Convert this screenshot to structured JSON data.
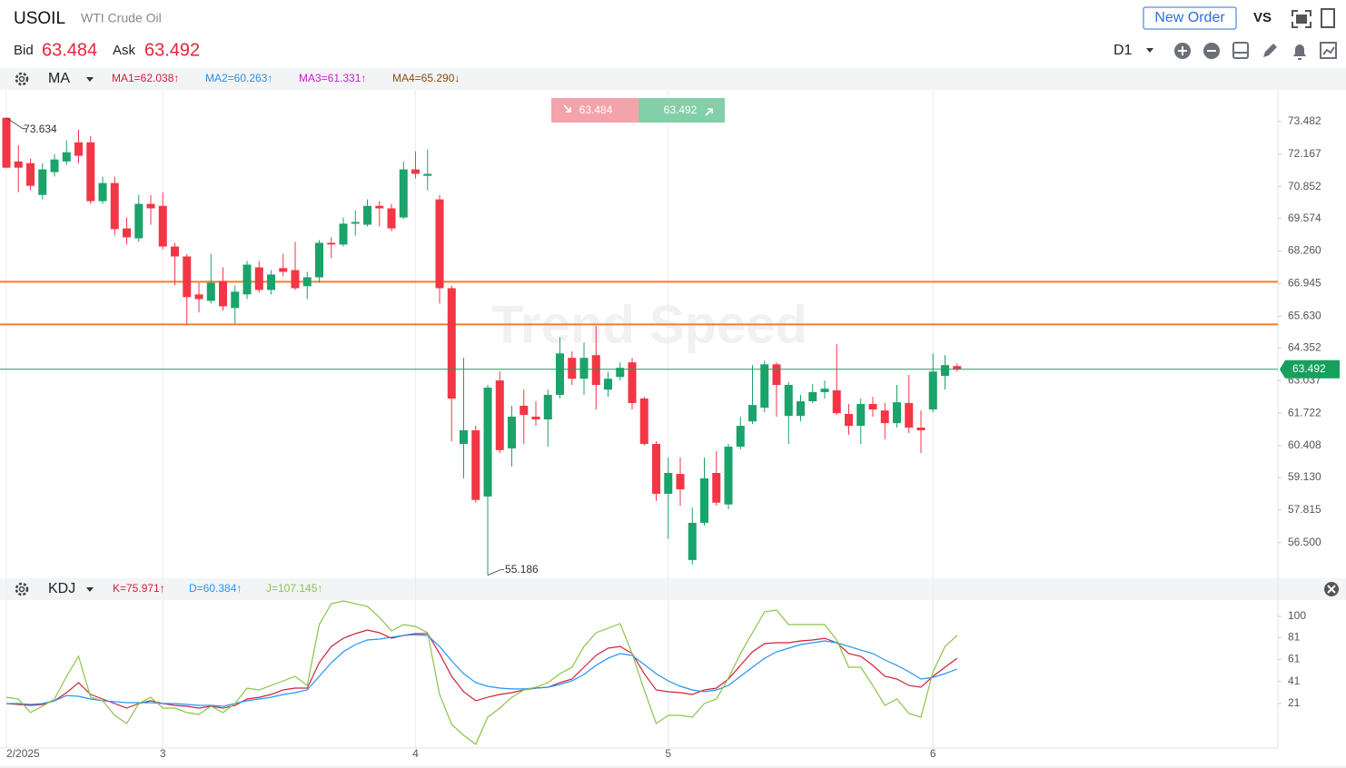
{
  "header": {
    "symbol": "USOIL",
    "name": "WTI Crude Oil",
    "bid_label": "Bid",
    "bid": "63.484",
    "ask_label": "Ask",
    "ask": "63.492",
    "new_order": "New Order",
    "vs": "VS",
    "timeframe": "D1"
  },
  "trade_box": {
    "sell": "63.484",
    "buy": "63.492"
  },
  "watermark": "Trend Speed",
  "chart_data": [
    {
      "type": "candlestick",
      "indicator": "MA",
      "indicator_labels": [
        {
          "text": "MA1=62.038↑",
          "color": "#d01c3c"
        },
        {
          "text": "MA2=60.263↑",
          "color": "#2b8fe0"
        },
        {
          "text": "MA3=61.331↑",
          "color": "#c81fc8"
        },
        {
          "text": "MA4=65.290↓",
          "color": "#8a4b0c"
        }
      ],
      "up_color": "#1aa36a",
      "down_color": "#f23645",
      "open": [
        73.63,
        71.87,
        71.8,
        70.52,
        71.44,
        71.87,
        72.64,
        72.64,
        70.27,
        71.0,
        69.17,
        68.77,
        70.16,
        70.08,
        68.44,
        68.04,
        66.51,
        66.25,
        67.05,
        65.96,
        66.51,
        67.6,
        66.69,
        67.57,
        67.49,
        66.84,
        67.2,
        68.59,
        68.52,
        69.36,
        69.32,
        70.08,
        69.98,
        69.61,
        71.55,
        71.29,
        70.34,
        66.76,
        60.48,
        61.03,
        58.36,
        63.04,
        60.3,
        62.02,
        61.58,
        61.47,
        62.46,
        63.95,
        63.11,
        64.06,
        62.67,
        63.18,
        63.77,
        62.31,
        60.48,
        58.47,
        59.27,
        55.8,
        57.3,
        59.31,
        58.04,
        60.37,
        61.39,
        61.94,
        63.69,
        61.61,
        61.61,
        62.2,
        62.57,
        62.64,
        61.69,
        61.21,
        62.09,
        61.83,
        61.32,
        62.13,
        61.14,
        61.87,
        63.22,
        63.62
      ],
      "high": [
        73.634,
        72.53,
        71.98,
        71.8,
        72.17,
        72.72,
        73.15,
        72.9,
        71.26,
        71.26,
        69.61,
        70.52,
        70.52,
        70.63,
        68.59,
        68.15,
        66.98,
        68.15,
        67.6,
        66.87,
        67.86,
        67.86,
        67.49,
        68.15,
        68.63,
        67.42,
        68.7,
        68.81,
        69.61,
        69.9,
        70.34,
        70.27,
        70.16,
        71.87,
        72.28,
        72.35,
        70.52,
        66.87,
        63.95,
        61.21,
        62.86,
        63.4,
        62.02,
        62.67,
        62.2,
        62.67,
        64.79,
        64.21,
        64.57,
        65.23,
        63.4,
        63.77,
        63.95,
        62.38,
        60.59,
        59.93,
        59.93,
        57.92,
        59.93,
        60.19,
        60.48,
        61.58,
        63.66,
        63.84,
        63.77,
        62.97,
        62.46,
        62.9,
        63.04,
        64.5,
        62.09,
        62.31,
        62.38,
        62.13,
        62.86,
        63.26,
        61.83,
        64.13,
        64.06,
        63.73
      ],
      "low": [
        71.6,
        70.63,
        70.71,
        70.34,
        71.26,
        71.73,
        71.8,
        70.16,
        70.16,
        68.88,
        68.52,
        68.63,
        69.32,
        68.33,
        66.87,
        65.3,
        65.78,
        66.14,
        65.85,
        65.34,
        66.32,
        66.58,
        66.51,
        67.24,
        66.69,
        66.32,
        66.98,
        67.97,
        68.44,
        68.88,
        69.25,
        69.25,
        69.06,
        69.54,
        71.18,
        70.71,
        66.14,
        60.59,
        59.09,
        58.11,
        55.186,
        60.11,
        59.57,
        60.48,
        61.21,
        60.37,
        62.31,
        62.86,
        62.46,
        61.87,
        62.38,
        63.04,
        61.87,
        60.41,
        58.18,
        56.65,
        57.99,
        55.62,
        57.19,
        57.99,
        57.85,
        60.26,
        61.28,
        61.76,
        61.58,
        60.48,
        61.39,
        62.13,
        62.31,
        61.65,
        60.85,
        60.48,
        61.58,
        60.67,
        61.14,
        60.92,
        60.11,
        61.76,
        62.67,
        63.4
      ],
      "close": [
        71.62,
        71.62,
        70.89,
        71.55,
        71.95,
        72.24,
        72.1,
        70.27,
        71.0,
        69.14,
        68.81,
        70.16,
        69.98,
        68.44,
        68.04,
        66.4,
        66.32,
        66.98,
        66.03,
        66.62,
        67.71,
        66.69,
        67.31,
        67.42,
        66.76,
        67.2,
        68.59,
        68.52,
        69.36,
        69.43,
        70.08,
        69.98,
        69.17,
        71.55,
        71.37,
        71.37,
        66.76,
        62.31,
        61.03,
        58.22,
        62.75,
        60.23,
        61.58,
        61.65,
        61.47,
        62.46,
        64.13,
        63.11,
        63.95,
        62.86,
        63.11,
        63.55,
        62.13,
        60.48,
        58.47,
        59.31,
        58.65,
        57.3,
        59.09,
        58.11,
        60.37,
        61.21,
        62.05,
        63.69,
        62.86,
        62.86,
        62.2,
        62.57,
        62.71,
        61.72,
        61.21,
        62.09,
        61.87,
        61.32,
        62.16,
        61.14,
        61.03,
        63.4,
        63.66,
        63.49
      ],
      "last": 63.492,
      "last_color": "#17a05d",
      "levels": [
        67.02,
        65.3
      ],
      "level_color": "#f57c28",
      "ylim": [
        55.1,
        74.72
      ],
      "yticks": [
        73.482,
        72.167,
        70.852,
        69.574,
        {
          "value": 68.26,
          "label": "68.260"
        },
        66.945,
        {
          "value": 65.63,
          "label": "65.630"
        },
        64.352,
        63.037,
        61.722,
        60.408,
        {
          "value": 59.13,
          "label": "59.130"
        },
        57.815,
        {
          "value": 56.5,
          "label": "56.500"
        }
      ],
      "xlim": [
        -0.53,
        105.66
      ],
      "xticks": [
        {
          "value": 0,
          "label": "2/2025"
        },
        {
          "value": 13,
          "label": "3"
        },
        {
          "value": 34,
          "label": "4"
        },
        {
          "value": 55,
          "label": "5"
        },
        {
          "value": 77,
          "label": "6"
        }
      ]
    },
    {
      "type": "line",
      "indicator": "KDJ",
      "series": [
        {
          "name": "K=75.971↑",
          "color": "#d0213d",
          "values": [
            21.0,
            20.2,
            19.3,
            20.2,
            23.5,
            30.9,
            39.9,
            29.2,
            25.1,
            21.0,
            16.9,
            21.0,
            23.5,
            21.0,
            19.3,
            18.5,
            16.9,
            18.5,
            16.9,
            19.3,
            25.1,
            26.7,
            29.2,
            33.3,
            35.0,
            35.0,
            58.0,
            72.8,
            80.2,
            84.4,
            87.7,
            85.2,
            80.2,
            82.7,
            84.4,
            84.4,
            66.3,
            45.7,
            31.7,
            23.5,
            26.7,
            29.2,
            30.9,
            33.3,
            35.0,
            35.8,
            39.9,
            43.2,
            53.9,
            64.6,
            71.2,
            72.8,
            66.3,
            48.1,
            33.3,
            31.7,
            30.9,
            29.2,
            33.3,
            35.0,
            43.2,
            55.6,
            67.9,
            75.3,
            76.1,
            76.1,
            77.8,
            78.6,
            80.2,
            76.1,
            66.3,
            63.8,
            55.6,
            45.7,
            43.2,
            37.4,
            35.8,
            45.7,
            53.9,
            62.1
          ]
        },
        {
          "name": "D=60.384↑",
          "color": "#2196f3",
          "values": [
            21.0,
            21.0,
            20.2,
            21.0,
            23.5,
            28.2,
            27.6,
            25.1,
            23.5,
            22.6,
            21.8,
            21.8,
            21.8,
            21.0,
            21.0,
            20.2,
            19.3,
            19.3,
            18.5,
            21.0,
            23.5,
            25.1,
            26.7,
            29.2,
            30.9,
            33.3,
            45.7,
            58.0,
            67.9,
            74.5,
            78.6,
            79.4,
            81.1,
            82.7,
            83.5,
            82.7,
            72.8,
            59.7,
            48.1,
            39.9,
            36.6,
            35.0,
            34.2,
            34.2,
            35.0,
            35.8,
            38.3,
            41.6,
            47.3,
            55.6,
            62.1,
            66.3,
            64.6,
            56.4,
            48.1,
            41.6,
            36.6,
            33.3,
            31.7,
            33.3,
            37.4,
            45.7,
            53.9,
            62.1,
            67.9,
            71.2,
            74.5,
            76.1,
            77.8,
            76.1,
            72.8,
            69.5,
            66.3,
            60.5,
            55.6,
            49.8,
            43.2,
            44.8,
            48.1,
            52.3
          ]
        },
        {
          "name": "J=107.145↑",
          "color": "#8bc34a",
          "values": [
            26.7,
            25.1,
            12.8,
            18.5,
            25.1,
            45.7,
            63.8,
            26.7,
            23.5,
            10.3,
            2.9,
            21.0,
            26.7,
            16.9,
            16.9,
            12.8,
            11.1,
            18.5,
            12.8,
            21.0,
            35.0,
            33.3,
            37.4,
            41.6,
            45.7,
            37.4,
            92.6,
            111.5,
            114.0,
            111.5,
            109.1,
            99.2,
            86.8,
            92.6,
            90.9,
            85.2,
            29.2,
            2.1,
            -7.8,
            -16.0,
            8.6,
            16.9,
            26.7,
            33.3,
            35.8,
            39.9,
            48.1,
            53.9,
            72.8,
            85.2,
            89.3,
            93.4,
            66.3,
            33.3,
            2.9,
            10.3,
            10.3,
            8.6,
            21.0,
            25.1,
            44.0,
            66.3,
            85.2,
            104.1,
            105.8,
            92.6,
            92.6,
            92.6,
            92.6,
            78.6,
            53.9,
            53.9,
            37.4,
            19.3,
            25.1,
            11.9,
            8.6,
            49.8,
            72.8,
            82.7
          ]
        }
      ],
      "ylim": [
        -17.7,
        114
      ],
      "yticks": [
        100,
        81,
        61,
        41,
        21
      ],
      "xlim": [
        -0.53,
        105.66
      ]
    }
  ]
}
